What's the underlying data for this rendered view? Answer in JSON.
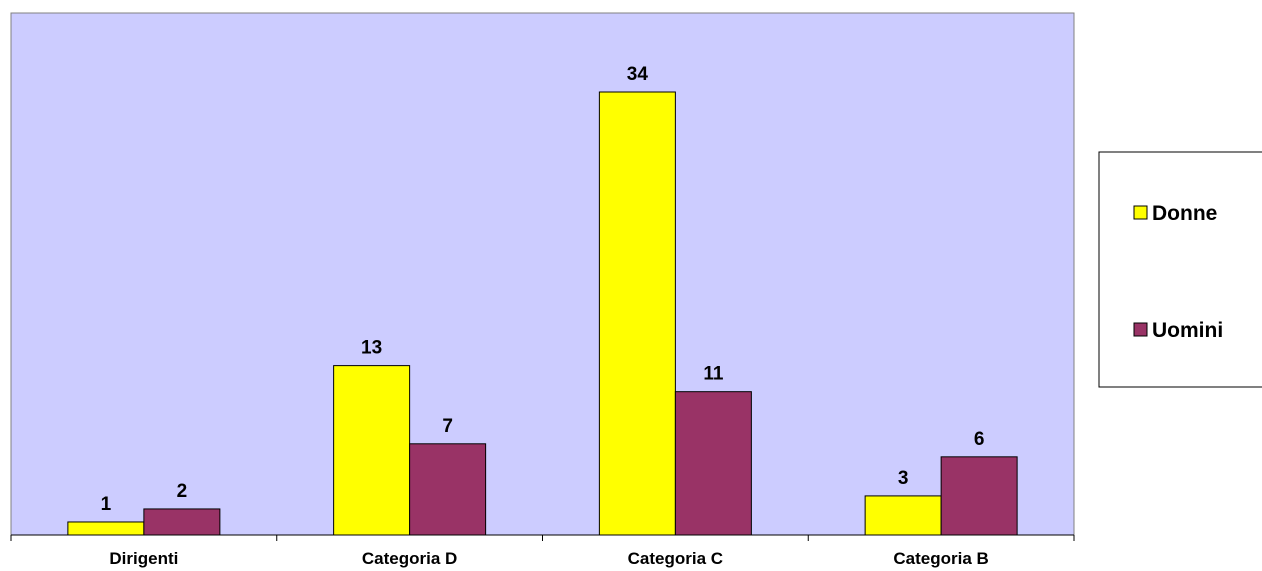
{
  "chart_data": {
    "type": "bar",
    "categories": [
      "Dirigenti",
      "Categoria D",
      "Categoria C",
      "Categoria B"
    ],
    "series": [
      {
        "name": "Donne",
        "values": [
          1,
          13,
          34,
          3
        ],
        "color": "#FFFF00"
      },
      {
        "name": "Uomini",
        "values": [
          2,
          7,
          11,
          6
        ],
        "color": "#993366"
      }
    ],
    "title": "",
    "xlabel": "",
    "ylabel": "",
    "ylim": [
      0,
      34
    ],
    "grid": false,
    "data_labels": true,
    "legend_position": "right",
    "plot_background": "#CCCCFF"
  }
}
